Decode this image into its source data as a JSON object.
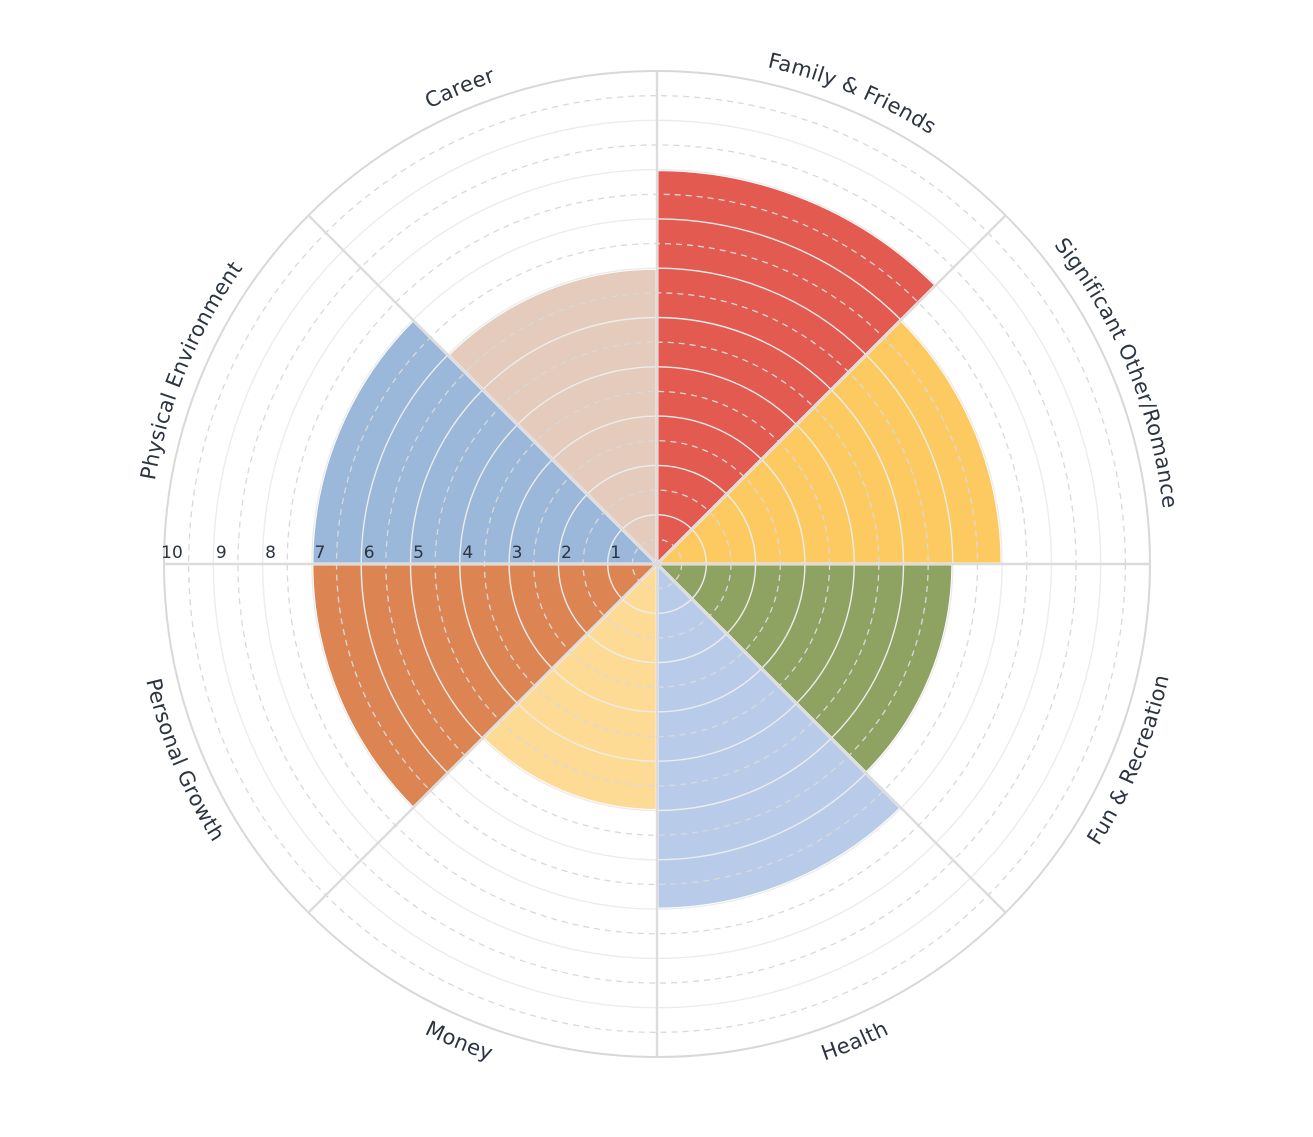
{
  "chart_data": {
    "type": "polar-bar",
    "title": "",
    "r_ticks": [
      "1",
      "2",
      "3",
      "4",
      "5",
      "6",
      "7",
      "8",
      "9",
      "10"
    ],
    "rlim": [
      0,
      10
    ],
    "grid": true,
    "categories": [
      "Family & Friends",
      "Significant Other/Romance",
      "Fun & Recreation",
      "Health",
      "Money",
      "Personal Growth",
      "Physical Environment",
      "Career"
    ],
    "values": [
      8,
      7,
      6,
      7,
      5,
      7,
      7,
      6
    ],
    "colors": [
      "#e35a50",
      "#fdca62",
      "#8ea262",
      "#b8cce9",
      "#fedb95",
      "#dd8552",
      "#9bb7d9",
      "#e4cbbb"
    ]
  }
}
